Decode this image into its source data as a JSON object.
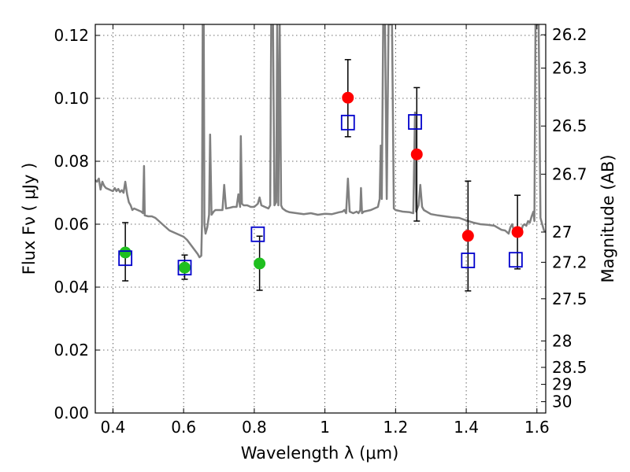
{
  "chart_data": {
    "type": "scatter",
    "title": "",
    "xlabel": "Wavelength  λ (μm)",
    "ylabel": "Flux  Fν  ( μJy )",
    "y2label": "Magnitude (AB)",
    "xlim": [
      0.35,
      1.625
    ],
    "ylim": [
      0.0,
      0.1235
    ],
    "x_ticks": [
      0.4,
      0.6,
      0.8,
      1.0,
      1.2,
      1.4,
      1.6
    ],
    "x_tick_labels": [
      "0.4",
      "0.6",
      "0.8",
      "1",
      "1.2",
      "1.4",
      "1.6"
    ],
    "y_ticks": [
      0.0,
      0.02,
      0.04,
      0.06,
      0.08,
      0.1,
      0.12
    ],
    "y_tick_labels": [
      "0.00",
      "0.02",
      "0.04",
      "0.06",
      "0.08",
      "0.10",
      "0.12"
    ],
    "y2_ticks": [
      {
        "label": "26.2",
        "flux": 0.1202
      },
      {
        "label": "26.3",
        "flux": 0.1096
      },
      {
        "label": "26.5",
        "flux": 0.0912
      },
      {
        "label": "26.7",
        "flux": 0.0759
      },
      {
        "label": "27",
        "flux": 0.0575
      },
      {
        "label": "27.2",
        "flux": 0.0479
      },
      {
        "label": "27.5",
        "flux": 0.0363
      },
      {
        "label": "28",
        "flux": 0.0229
      },
      {
        "label": "28.5",
        "flux": 0.0145
      },
      {
        "label": "29",
        "flux": 0.0091
      },
      {
        "label": "30",
        "flux": 0.0036
      }
    ],
    "grid": true,
    "legend": "none",
    "series": [
      {
        "kind": "line",
        "color": "#808080",
        "points": [
          [
            0.35,
            0.074
          ],
          [
            0.355,
            0.0735
          ],
          [
            0.36,
            0.0745
          ],
          [
            0.365,
            0.071
          ],
          [
            0.37,
            0.0735
          ],
          [
            0.375,
            0.0722
          ],
          [
            0.38,
            0.0715
          ],
          [
            0.39,
            0.071
          ],
          [
            0.4,
            0.0705
          ],
          [
            0.405,
            0.0715
          ],
          [
            0.41,
            0.0705
          ],
          [
            0.415,
            0.0712
          ],
          [
            0.42,
            0.0702
          ],
          [
            0.425,
            0.0708
          ],
          [
            0.43,
            0.07
          ],
          [
            0.435,
            0.0735
          ],
          [
            0.44,
            0.0695
          ],
          [
            0.445,
            0.067
          ],
          [
            0.45,
            0.066
          ],
          [
            0.455,
            0.0645
          ],
          [
            0.46,
            0.065
          ],
          [
            0.47,
            0.0645
          ],
          [
            0.48,
            0.064
          ],
          [
            0.485,
            0.0635
          ],
          [
            0.488,
            0.0785
          ],
          [
            0.49,
            0.0628
          ],
          [
            0.5,
            0.0625
          ],
          [
            0.51,
            0.0625
          ],
          [
            0.52,
            0.062
          ],
          [
            0.53,
            0.061
          ],
          [
            0.54,
            0.06
          ],
          [
            0.55,
            0.059
          ],
          [
            0.56,
            0.058
          ],
          [
            0.57,
            0.0575
          ],
          [
            0.58,
            0.057
          ],
          [
            0.59,
            0.0565
          ],
          [
            0.6,
            0.056
          ],
          [
            0.61,
            0.055
          ],
          [
            0.62,
            0.0535
          ],
          [
            0.63,
            0.052
          ],
          [
            0.64,
            0.0505
          ],
          [
            0.645,
            0.0495
          ],
          [
            0.65,
            0.05
          ],
          [
            0.652,
            0.06
          ],
          [
            0.654,
            0.1235
          ],
          [
            0.657,
            0.1235
          ],
          [
            0.659,
            0.06
          ],
          [
            0.662,
            0.057
          ],
          [
            0.667,
            0.059
          ],
          [
            0.672,
            0.063
          ],
          [
            0.675,
            0.0885
          ],
          [
            0.679,
            0.063
          ],
          [
            0.685,
            0.064
          ],
          [
            0.69,
            0.0645
          ],
          [
            0.7,
            0.0645
          ],
          [
            0.71,
            0.0645
          ],
          [
            0.715,
            0.0725
          ],
          [
            0.72,
            0.065
          ],
          [
            0.73,
            0.0652
          ],
          [
            0.74,
            0.0655
          ],
          [
            0.75,
            0.0655
          ],
          [
            0.755,
            0.0695
          ],
          [
            0.76,
            0.0655
          ],
          [
            0.762,
            0.088
          ],
          [
            0.765,
            0.0665
          ],
          [
            0.77,
            0.066
          ],
          [
            0.78,
            0.066
          ],
          [
            0.79,
            0.0655
          ],
          [
            0.8,
            0.0655
          ],
          [
            0.81,
            0.0665
          ],
          [
            0.815,
            0.0685
          ],
          [
            0.82,
            0.066
          ],
          [
            0.83,
            0.0655
          ],
          [
            0.84,
            0.065
          ],
          [
            0.845,
            0.066
          ],
          [
            0.848,
            0.1235
          ],
          [
            0.853,
            0.1235
          ],
          [
            0.857,
            0.066
          ],
          [
            0.862,
            0.067
          ],
          [
            0.865,
            0.1235
          ],
          [
            0.868,
            0.066
          ],
          [
            0.872,
            0.1235
          ],
          [
            0.876,
            0.066
          ],
          [
            0.88,
            0.065
          ],
          [
            0.89,
            0.0642
          ],
          [
            0.9,
            0.0638
          ],
          [
            0.92,
            0.0635
          ],
          [
            0.94,
            0.0632
          ],
          [
            0.96,
            0.0635
          ],
          [
            0.98,
            0.063
          ],
          [
            1.0,
            0.0633
          ],
          [
            1.02,
            0.0632
          ],
          [
            1.04,
            0.0638
          ],
          [
            1.05,
            0.064
          ],
          [
            1.055,
            0.0645
          ],
          [
            1.06,
            0.0635
          ],
          [
            1.065,
            0.0745
          ],
          [
            1.07,
            0.064
          ],
          [
            1.08,
            0.0635
          ],
          [
            1.09,
            0.064
          ],
          [
            1.095,
            0.0635
          ],
          [
            1.1,
            0.0645
          ],
          [
            1.102,
            0.0715
          ],
          [
            1.105,
            0.0635
          ],
          [
            1.11,
            0.064
          ],
          [
            1.13,
            0.0645
          ],
          [
            1.14,
            0.065
          ],
          [
            1.15,
            0.0655
          ],
          [
            1.155,
            0.068
          ],
          [
            1.158,
            0.085
          ],
          [
            1.161,
            0.068
          ],
          [
            1.165,
            0.1235
          ],
          [
            1.17,
            0.1235
          ],
          [
            1.175,
            0.068
          ],
          [
            1.18,
            0.1235
          ],
          [
            1.19,
            0.1235
          ],
          [
            1.195,
            0.065
          ],
          [
            1.2,
            0.0645
          ],
          [
            1.22,
            0.064
          ],
          [
            1.24,
            0.0638
          ],
          [
            1.25,
            0.0635
          ],
          [
            1.255,
            0.0955
          ],
          [
            1.258,
            0.064
          ],
          [
            1.26,
            0.0645
          ],
          [
            1.265,
            0.066
          ],
          [
            1.27,
            0.0725
          ],
          [
            1.275,
            0.0655
          ],
          [
            1.28,
            0.0645
          ],
          [
            1.3,
            0.0632
          ],
          [
            1.32,
            0.0628
          ],
          [
            1.34,
            0.0625
          ],
          [
            1.36,
            0.0622
          ],
          [
            1.38,
            0.062
          ],
          [
            1.4,
            0.0612
          ],
          [
            1.42,
            0.0605
          ],
          [
            1.44,
            0.06
          ],
          [
            1.46,
            0.0598
          ],
          [
            1.48,
            0.0595
          ],
          [
            1.5,
            0.0582
          ],
          [
            1.51,
            0.058
          ],
          [
            1.52,
            0.057
          ],
          [
            1.525,
            0.059
          ],
          [
            1.53,
            0.06
          ],
          [
            1.535,
            0.0578
          ],
          [
            1.54,
            0.058
          ],
          [
            1.545,
            0.0565
          ],
          [
            1.55,
            0.058
          ],
          [
            1.555,
            0.0575
          ],
          [
            1.56,
            0.0595
          ],
          [
            1.565,
            0.06
          ],
          [
            1.57,
            0.0595
          ],
          [
            1.575,
            0.061
          ],
          [
            1.58,
            0.0605
          ],
          [
            1.585,
            0.0625
          ],
          [
            1.59,
            0.064
          ],
          [
            1.593,
            0.061
          ],
          [
            1.596,
            0.1235
          ],
          [
            1.605,
            0.1235
          ],
          [
            1.61,
            0.062
          ],
          [
            1.615,
            0.06
          ],
          [
            1.62,
            0.058
          ],
          [
            1.625,
            0.0575
          ]
        ]
      },
      {
        "kind": "points",
        "marker": "circle",
        "color": "#1fbf1f",
        "points": [
          {
            "x": 0.435,
            "y": 0.051,
            "err_low": 0.042,
            "err_high": 0.0605
          },
          {
            "x": 0.603,
            "y": 0.0462,
            "err_low": 0.0425,
            "err_high": 0.0502
          },
          {
            "x": 0.815,
            "y": 0.0475,
            "err_low": 0.039,
            "err_high": 0.0562
          }
        ]
      },
      {
        "kind": "points",
        "marker": "circle",
        "color": "#ff0000",
        "points": [
          {
            "x": 1.065,
            "y": 0.1002,
            "err_low": 0.0878,
            "err_high": 0.1123
          },
          {
            "x": 1.26,
            "y": 0.0822,
            "err_low": 0.061,
            "err_high": 0.1034
          },
          {
            "x": 1.405,
            "y": 0.0563,
            "err_low": 0.0388,
            "err_high": 0.0737
          },
          {
            "x": 1.545,
            "y": 0.0575,
            "err_low": 0.0458,
            "err_high": 0.0692
          }
        ]
      },
      {
        "kind": "points",
        "marker": "open-square",
        "color": "#0000cc",
        "points": [
          {
            "x": 0.435,
            "y": 0.0492
          },
          {
            "x": 0.603,
            "y": 0.0462
          },
          {
            "x": 0.81,
            "y": 0.0568
          },
          {
            "x": 1.065,
            "y": 0.0923
          },
          {
            "x": 1.255,
            "y": 0.0925
          },
          {
            "x": 1.405,
            "y": 0.0485
          },
          {
            "x": 1.54,
            "y": 0.0487
          }
        ]
      }
    ]
  }
}
